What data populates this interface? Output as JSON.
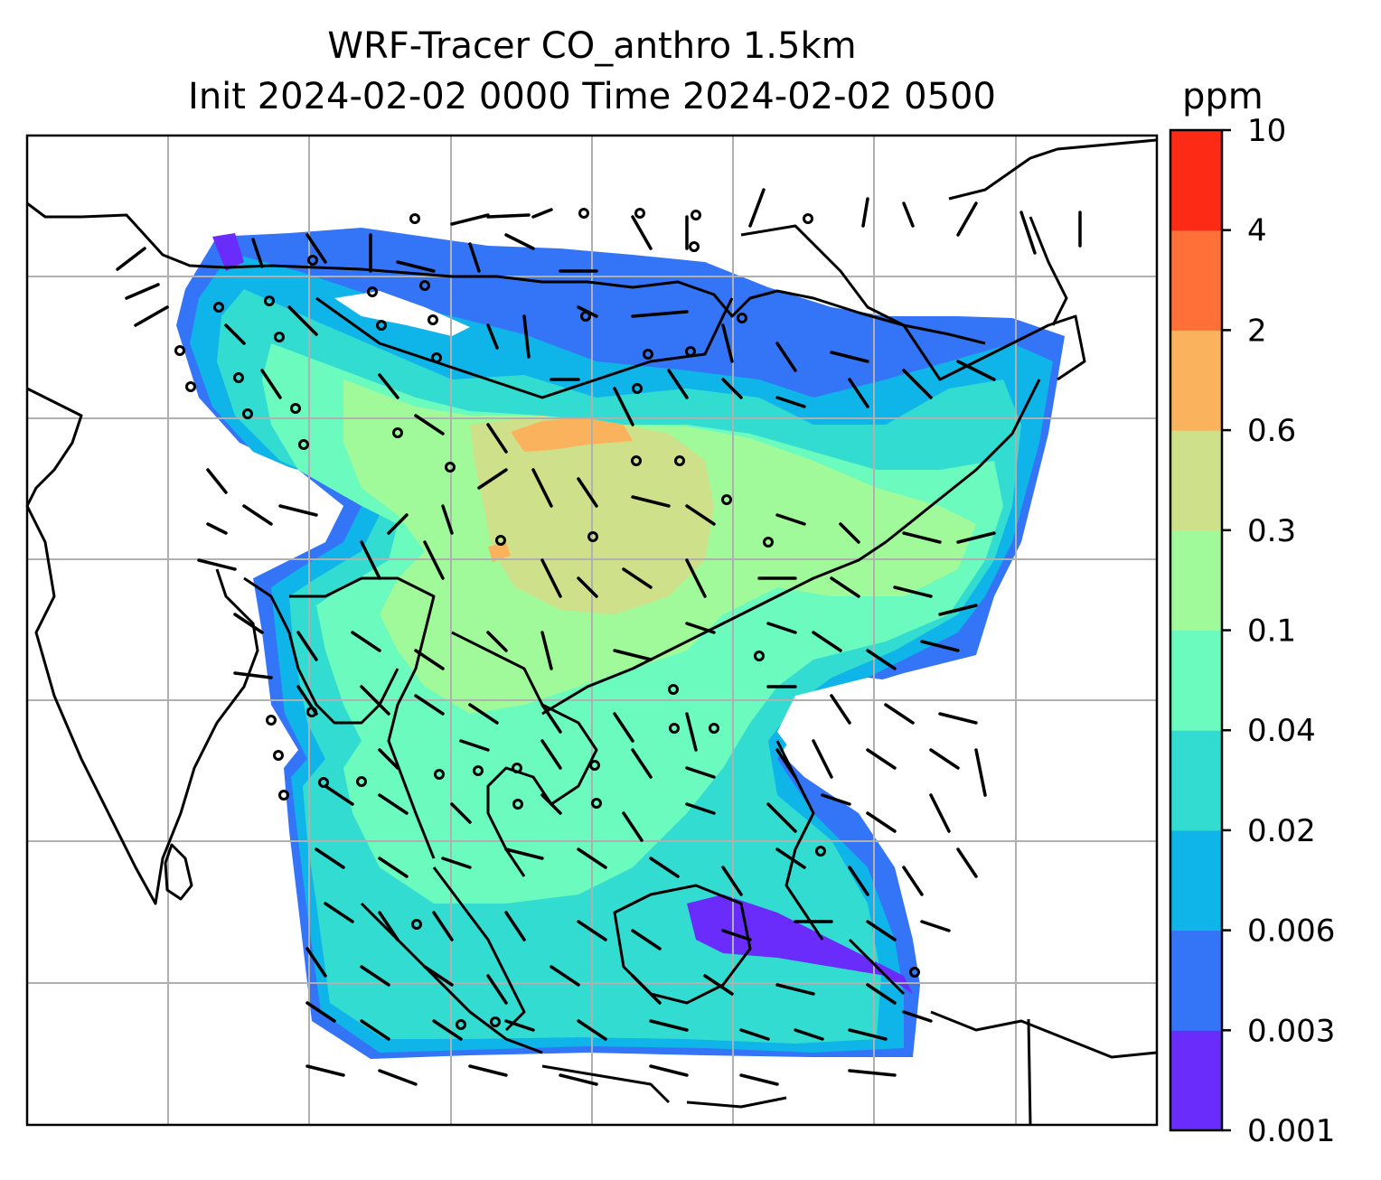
{
  "title": {
    "line1": "WRF-Tracer CO_anthro 1.5km",
    "line2": "Init 2024-02-02 0000 Time 2024-02-02 0500"
  },
  "colorbar": {
    "unit": "ppm",
    "levels": [
      "0.001",
      "0.003",
      "0.006",
      "0.02",
      "0.04",
      "0.1",
      "0.3",
      "0.6",
      "2",
      "4",
      "10"
    ],
    "colors": [
      "#6a2cfb",
      "#3474f6",
      "#0fb4e8",
      "#33dcd1",
      "#6cfbbe",
      "#a0fa9a",
      "#cfe08a",
      "#fbb25d",
      "#fe7038",
      "#fd2b15"
    ]
  }
}
